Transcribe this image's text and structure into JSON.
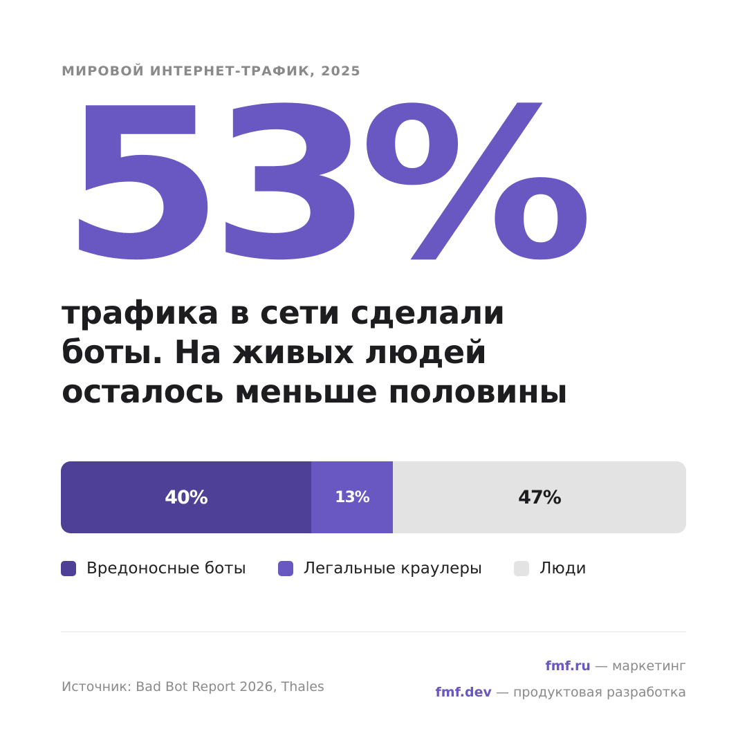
{
  "header": {
    "kicker": "МИРОВОЙ ИНТЕРНЕТ-ТРАФИК, 2025"
  },
  "hero": {
    "value": "53%",
    "text_lines": [
      "трафика в сети сделали",
      "боты. На живых людей",
      "осталось меньше половины"
    ]
  },
  "chart_data": {
    "type": "bar",
    "orientation": "horizontal-stacked",
    "categories": [
      "Вредоносные боты",
      "Легальные краулеры",
      "Люди"
    ],
    "values": [
      40,
      13,
      47
    ],
    "labels": [
      "40%",
      "13%",
      "47%"
    ],
    "unit": "%",
    "colors": [
      "#4e3f97",
      "#6a58c2",
      "#e3e3e3"
    ],
    "label_colors": [
      "#ffffff",
      "#ffffff",
      "#1d1d1f"
    ],
    "legend_position": "bottom-left"
  },
  "footer": {
    "source": "Источник: Bad Bot Report 2026, Thales",
    "links": [
      {
        "brand": "fmf.ru",
        "desc": " — маркетинг"
      },
      {
        "brand": "fmf.dev",
        "desc": " — продуктовая разработка"
      }
    ]
  },
  "colors": {
    "accent": "#6a58c2",
    "accent_dark": "#4e3f97",
    "text": "#1d1d1f",
    "muted": "#8a8a8a"
  }
}
